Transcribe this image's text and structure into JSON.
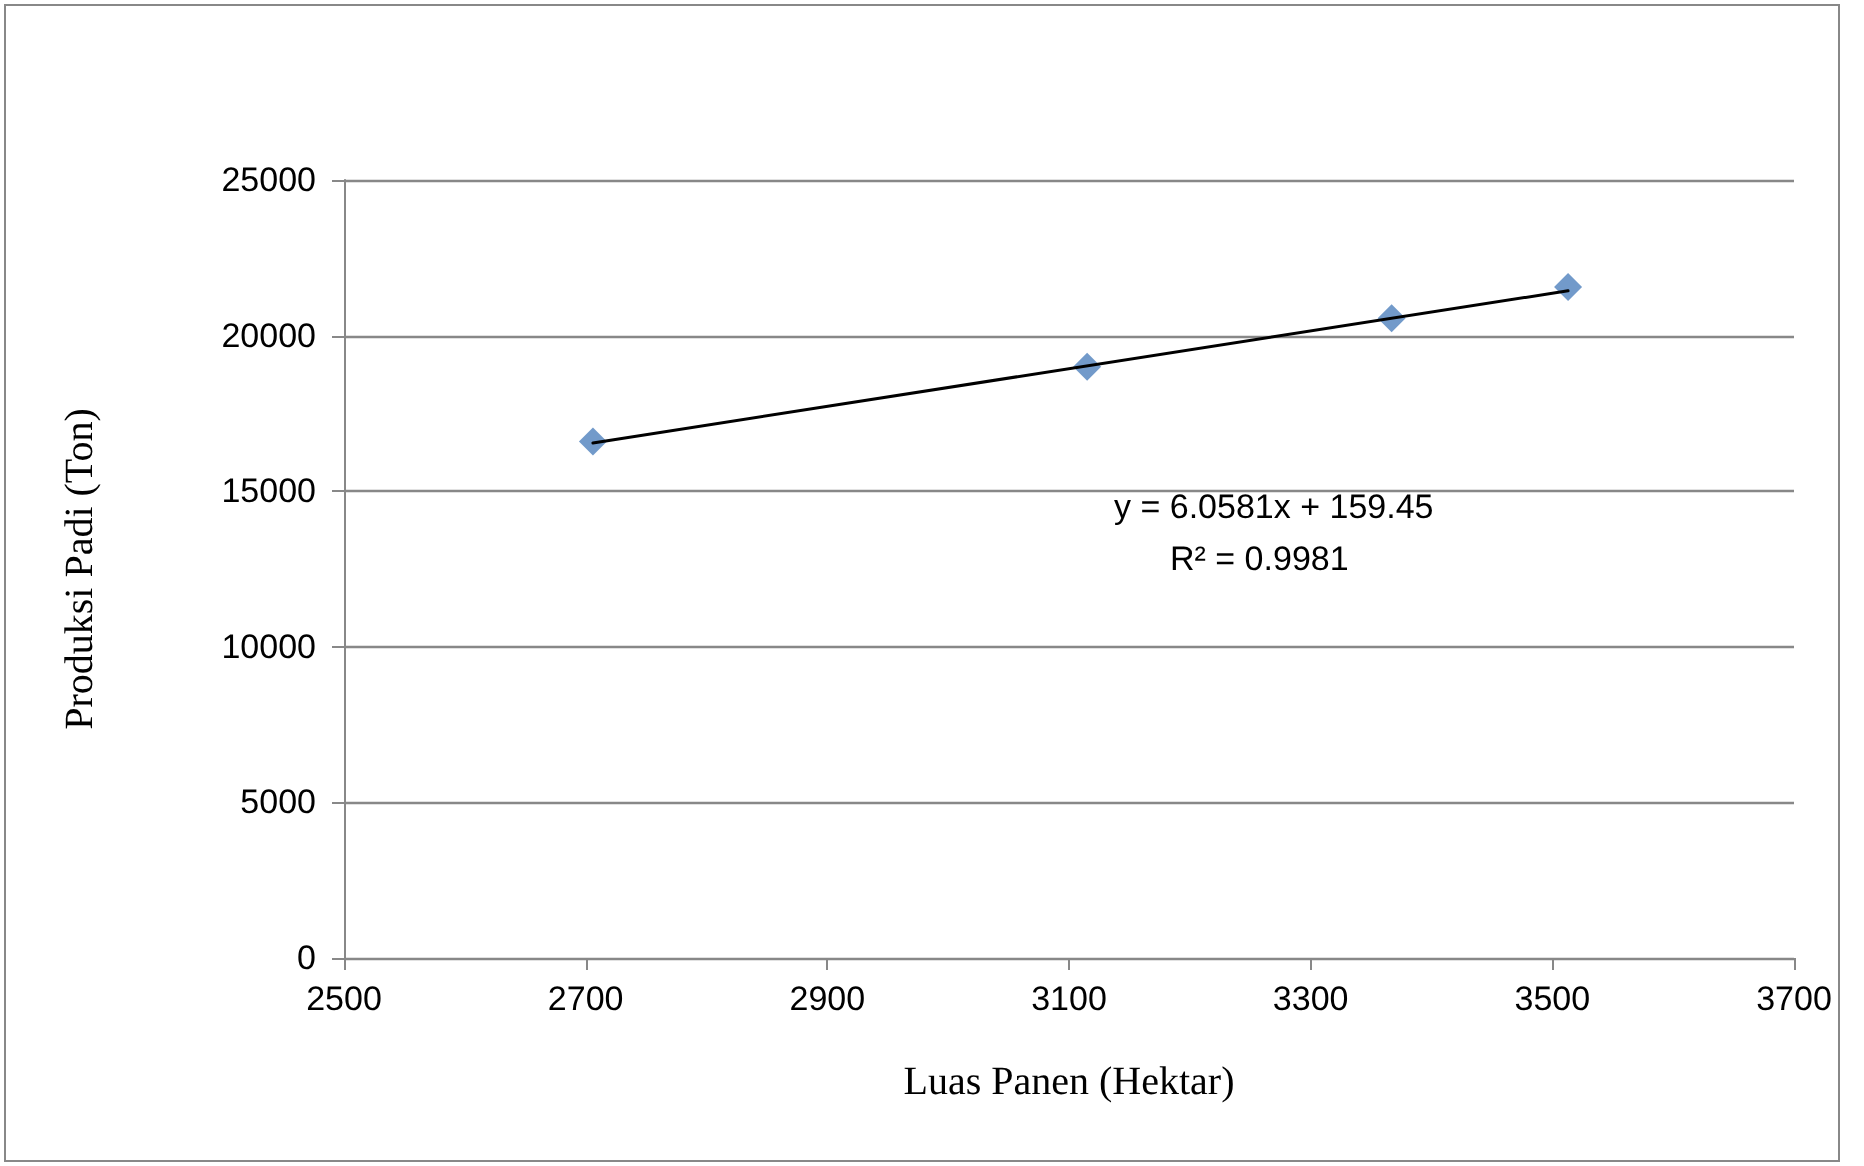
{
  "chart_data": {
    "type": "scatter",
    "xlabel": "Luas Panen (Hektar)",
    "ylabel": "Produksi Padi (Ton)",
    "x": [
      2706,
      3115,
      3367,
      3513
    ],
    "series": [
      {
        "color": "#4f81bd",
        "values": [
          16600,
          19000,
          20560,
          21560
        ],
        "marker": "diamond"
      },
      {
        "type": "line",
        "color": "#000000",
        "x": [
          2706,
          3513
        ],
        "values": [
          16550,
          21440
        ],
        "marker": "none",
        "line_style": "solid"
      }
    ],
    "xlim": [
      2500,
      3700
    ],
    "xticks": [
      2500,
      2700,
      2900,
      3100,
      3300,
      3500,
      3700
    ],
    "ylim": [
      0,
      25000
    ],
    "yticks": [
      0,
      5000,
      10000,
      15000,
      20000,
      25000
    ],
    "grid": "y",
    "annotations": [
      "y = 6.0581x + 159.45",
      "R² = 0.9981"
    ]
  }
}
